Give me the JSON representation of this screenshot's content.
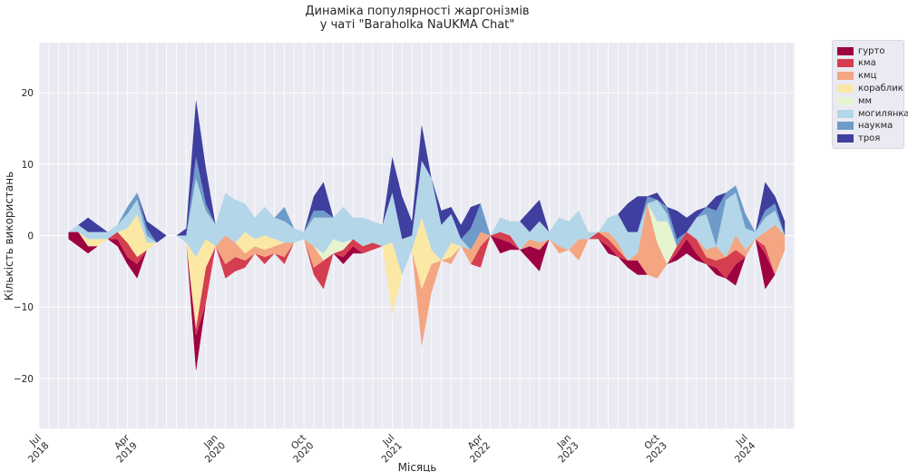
{
  "chart_data": {
    "type": "area",
    "title": "Динаміка популярності жаргонізмів",
    "subtitle": "у чаті \"Baraholka NaUKMA Chat\"",
    "xlabel": "Місяць",
    "ylabel": "Кількість використань",
    "ylim": [
      -27,
      27
    ],
    "yticks": [
      -20,
      -10,
      0,
      10,
      20
    ],
    "xlim": [
      "2018-07",
      "2024-12"
    ],
    "xticks": [
      {
        "month": "2018-07",
        "label": [
          "Jul",
          "2018"
        ]
      },
      {
        "month": "2019-04",
        "label": [
          "Apr",
          "2019"
        ]
      },
      {
        "month": "2020-01",
        "label": [
          "Jan",
          "2020"
        ]
      },
      {
        "month": "2020-10",
        "label": [
          "Oct",
          "2020"
        ]
      },
      {
        "month": "2021-07",
        "label": [
          "Jul",
          "2021"
        ]
      },
      {
        "month": "2022-04",
        "label": [
          "Apr",
          "2022"
        ]
      },
      {
        "month": "2023-01",
        "label": [
          "Jan",
          "2023"
        ]
      },
      {
        "month": "2023-10",
        "label": [
          "Oct",
          "2023"
        ]
      },
      {
        "month": "2024-07",
        "label": [
          "Jul",
          "2024"
        ]
      }
    ],
    "grid": true,
    "legend_position": "outside top-right",
    "months": [
      "2018-10",
      "2018-11",
      "2018-12",
      "2019-01",
      "2019-02",
      "2019-03",
      "2019-04",
      "2019-05",
      "2019-06",
      "2019-07",
      "2019-08",
      "2019-09",
      "2019-10",
      "2019-11",
      "2019-12",
      "2020-01",
      "2020-02",
      "2020-03",
      "2020-04",
      "2020-05",
      "2020-06",
      "2020-07",
      "2020-08",
      "2020-09",
      "2020-10",
      "2020-11",
      "2020-12",
      "2021-01",
      "2021-02",
      "2021-03",
      "2021-04",
      "2021-05",
      "2021-06",
      "2021-07",
      "2021-08",
      "2021-09",
      "2021-10",
      "2021-11",
      "2021-12",
      "2022-01",
      "2022-02",
      "2022-03",
      "2022-04",
      "2022-05",
      "2022-06",
      "2022-07",
      "2022-08",
      "2022-09",
      "2022-10",
      "2022-11",
      "2022-12",
      "2023-01",
      "2023-02",
      "2023-03",
      "2023-04",
      "2023-05",
      "2023-06",
      "2023-07",
      "2023-08",
      "2023-09",
      "2023-10",
      "2023-11",
      "2023-12",
      "2024-01",
      "2024-02",
      "2024-03",
      "2024-04",
      "2024-05",
      "2024-06",
      "2024-07",
      "2024-08",
      "2024-09",
      "2024-10",
      "2024-11"
    ],
    "series": [
      {
        "name": "гурто",
        "color": "#9e0142",
        "values": [
          1,
          2,
          1,
          0,
          0,
          1,
          1,
          2,
          0,
          0,
          0,
          0,
          0,
          5,
          0,
          0,
          0,
          0,
          0,
          0,
          0,
          0,
          0,
          0,
          0,
          0,
          0,
          0,
          1,
          1,
          0,
          0,
          0,
          0,
          0,
          0,
          0,
          0,
          0,
          0,
          0,
          0,
          0,
          0,
          2,
          1,
          0,
          2,
          3,
          0,
          0,
          0,
          0,
          0,
          0,
          1,
          0,
          1,
          2,
          0,
          0,
          0,
          1,
          2,
          1,
          0,
          1,
          0,
          3,
          0,
          0,
          5,
          0,
          0
        ]
      },
      {
        "name": "кма",
        "color": "#d53e4f",
        "values": [
          0,
          0,
          0,
          0,
          0,
          1,
          2,
          1,
          0,
          0,
          0,
          0,
          0,
          1,
          5,
          0,
          2,
          2,
          1,
          0,
          1,
          0,
          1,
          0,
          0,
          1,
          4,
          0,
          1,
          1,
          1,
          1,
          0,
          0,
          0,
          0,
          0,
          0,
          0,
          0,
          0,
          0,
          3,
          0,
          1,
          1,
          0,
          0,
          0,
          0,
          0,
          0,
          0,
          0,
          1,
          1,
          1,
          0,
          0,
          0,
          0,
          0,
          1,
          1,
          2,
          1,
          1,
          3,
          2,
          0,
          0,
          1,
          0,
          0
        ]
      },
      {
        "name": "кмц",
        "color": "#f4a582",
        "values": [
          0,
          0,
          0,
          0,
          0,
          0,
          0,
          0,
          0,
          0,
          0,
          0,
          0,
          0,
          0,
          0,
          4,
          2,
          1,
          1,
          1,
          1,
          2,
          0,
          0,
          3,
          0,
          0,
          0,
          0,
          0,
          0,
          0,
          0,
          0,
          0,
          8,
          4,
          0,
          1,
          0,
          2,
          2,
          0,
          0,
          0,
          0,
          1,
          1,
          0,
          1,
          0,
          3,
          0,
          0,
          1,
          1,
          0,
          1,
          10,
          5,
          0,
          0,
          0,
          0,
          1,
          2,
          0,
          2,
          1,
          0,
          2,
          7,
          2
        ]
      },
      {
        "name": "кораблик",
        "color": "#fbe8a4",
        "values": [
          0,
          0,
          1,
          1,
          0,
          0,
          2,
          6,
          1,
          0,
          0,
          0,
          0,
          10,
          4,
          0,
          0,
          0,
          3,
          1,
          2,
          1,
          0,
          0,
          0,
          0,
          0,
          0,
          0,
          0,
          0,
          0,
          0,
          10,
          0,
          0,
          10,
          2,
          0,
          2,
          0,
          0,
          0,
          0,
          0,
          0,
          0,
          0,
          0,
          0,
          0,
          0,
          0,
          0,
          0,
          0,
          0,
          0,
          0,
          0,
          0,
          0,
          0,
          0,
          0,
          0,
          0,
          0,
          0,
          0,
          0,
          0,
          0,
          0
        ]
      },
      {
        "name": "мм",
        "color": "#e6f5d0",
        "values": [
          0,
          0,
          0,
          0,
          0,
          0,
          0,
          0,
          0,
          0,
          0,
          0,
          0,
          0,
          0,
          0,
          0,
          0,
          0,
          0,
          0,
          0,
          0,
          0,
          0,
          0,
          1,
          2,
          1,
          0,
          0,
          0,
          0,
          0,
          0,
          0,
          0,
          0,
          0,
          0,
          0,
          0,
          0,
          0,
          0,
          0,
          0,
          0,
          0,
          0,
          0,
          0,
          0,
          0,
          0,
          0,
          0,
          0,
          0,
          0,
          3,
          6,
          0,
          0,
          0,
          0,
          0,
          0,
          0,
          0,
          0,
          0,
          0,
          0
        ]
      },
      {
        "name": "могилянка",
        "color": "#b3d6e8",
        "values": [
          0,
          1,
          1,
          1,
          1,
          1,
          2,
          2,
          1,
          0,
          0,
          0,
          1,
          11,
          4,
          3,
          6,
          6,
          4,
          3,
          4,
          3,
          3,
          2,
          1,
          4,
          5,
          3,
          5,
          3,
          4,
          3,
          3,
          7,
          5,
          2,
          8,
          10,
          5,
          4,
          1,
          0,
          0,
          0,
          2,
          2,
          4,
          1,
          3,
          1,
          4,
          4,
          4,
          1,
          0,
          2,
          4,
          4,
          3,
          0,
          3,
          1,
          0,
          0,
          3,
          5,
          0,
          8,
          6,
          3,
          1,
          2,
          2,
          0
        ]
      },
      {
        "name": "наукма",
        "color": "#6e9bc9",
        "values": [
          0,
          0,
          0,
          0,
          0,
          0,
          1,
          1,
          1,
          0,
          0,
          0,
          0,
          3,
          1,
          0,
          0,
          0,
          0,
          0,
          0,
          0,
          2,
          0,
          0,
          1,
          1,
          0,
          0,
          0,
          0,
          0,
          0,
          0,
          0,
          0,
          0,
          0,
          0,
          0,
          0,
          3,
          4,
          0,
          0,
          0,
          0,
          0,
          0,
          0,
          0,
          0,
          0,
          0,
          0,
          0,
          0,
          0,
          0,
          1,
          0,
          1,
          1,
          0,
          0,
          1,
          5,
          1,
          1,
          2,
          0,
          1,
          1,
          0
        ]
      },
      {
        "name": "троя",
        "color": "#3f3f9f",
        "values": [
          0,
          0,
          2,
          1,
          0,
          0,
          0,
          0,
          1,
          2,
          0,
          0,
          1,
          8,
          5,
          0,
          0,
          0,
          0,
          0,
          0,
          0,
          0,
          0,
          0,
          2,
          4,
          0,
          0,
          0,
          0,
          0,
          0,
          5,
          6,
          2,
          5,
          0,
          2,
          1,
          2,
          3,
          0,
          0,
          0,
          0,
          0,
          3,
          3,
          0,
          0,
          0,
          0,
          0,
          0,
          0,
          0,
          4,
          5,
          0,
          1,
          0,
          4,
          2,
          1,
          0,
          2,
          0,
          0,
          0,
          0,
          4,
          1,
          2
        ]
      }
    ]
  }
}
